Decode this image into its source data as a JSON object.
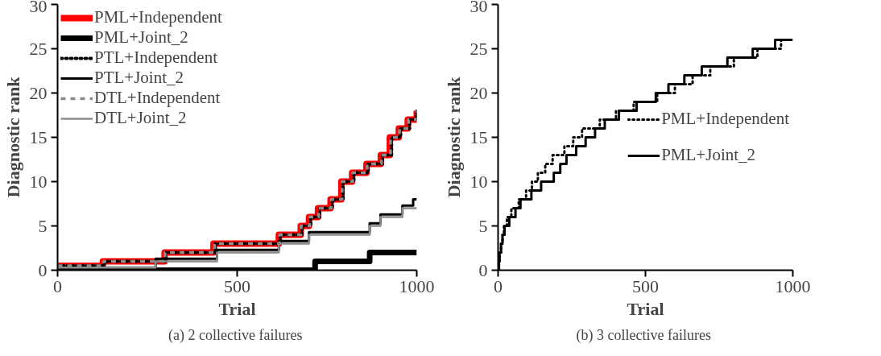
{
  "chart_data": [
    {
      "type": "step",
      "xlabel": "Trial",
      "ylabel": "Diagnostic rank",
      "xlim": [
        0,
        1000
      ],
      "xticks": [
        0,
        500,
        1000
      ],
      "ylim": [
        0,
        30
      ],
      "yticks": [
        0,
        5,
        10,
        15,
        20,
        25,
        30
      ],
      "grid": false,
      "legend": "top left",
      "annotations": [
        "(a)  2 collective failures"
      ],
      "series": [
        {
          "name": "PML+Independent",
          "color": "#ff0000",
          "line_style": "solid",
          "x": [
            0,
            126,
            298,
            434,
            616,
            677,
            700,
            725,
            760,
            790,
            820,
            860,
            900,
            925,
            950,
            975,
            1000
          ],
          "values": [
            0.5,
            1,
            2,
            3,
            4,
            5,
            6,
            7,
            8,
            10,
            11,
            12,
            13,
            15,
            16,
            17,
            18
          ]
        },
        {
          "name": "PML+Joint_2",
          "color": "#000000",
          "line_style": "solid",
          "x": [
            0,
            717,
            869,
            1000
          ],
          "values": [
            0,
            1,
            2,
            2
          ]
        },
        {
          "name": "PTL+Independent",
          "color": "#000000",
          "line_style": "dotted",
          "x": [
            0,
            130,
            300,
            440,
            620,
            680,
            705,
            730,
            765,
            795,
            825,
            865,
            905,
            930,
            955,
            980,
            1000
          ],
          "values": [
            0.5,
            1,
            2,
            3,
            4,
            5,
            6,
            7,
            8,
            10,
            11,
            12,
            13,
            15,
            16,
            17,
            18
          ]
        },
        {
          "name": "PTL+Joint_2",
          "color": "#000000",
          "line_style": "solid",
          "x": [
            0,
            273,
            444,
            616,
            700,
            869,
            899,
            960,
            990,
            1000
          ],
          "values": [
            0.3,
            1.3,
            2.3,
            3.3,
            4.3,
            5.3,
            6.3,
            7.3,
            8,
            8
          ]
        },
        {
          "name": "DTL+Independent",
          "color": "#8c8c8c",
          "line_style": "dashed",
          "x": [
            0,
            128,
            299,
            437,
            618,
            678,
            702,
            727,
            762,
            792,
            822,
            862,
            902,
            927,
            952,
            977,
            1000
          ],
          "values": [
            0.5,
            1,
            2,
            3,
            4,
            5,
            6,
            7,
            8,
            10,
            11,
            12,
            13,
            15,
            16,
            17,
            18
          ]
        },
        {
          "name": "DTL+Joint_2",
          "color": "#8c8c8c",
          "line_style": "solid",
          "x": [
            0,
            273,
            444,
            616,
            700,
            869,
            899,
            960,
            1000
          ],
          "values": [
            0.3,
            1,
            2,
            3,
            4,
            5,
            6,
            7,
            7
          ]
        }
      ]
    },
    {
      "type": "step",
      "xlabel": "Trial",
      "ylabel": "Diagnostic rank",
      "xlim": [
        0,
        1000
      ],
      "xticks": [
        0,
        500,
        1000
      ],
      "ylim": [
        0,
        30
      ],
      "yticks": [
        0,
        5,
        10,
        15,
        20,
        25,
        30
      ],
      "grid": false,
      "legend": "right",
      "annotations": [
        "(b)  3 collective failures"
      ],
      "series": [
        {
          "name": "PML+Independent",
          "color": "#000000",
          "line_style": "dotted",
          "x": [
            0,
            3,
            5,
            10,
            15,
            20,
            30,
            45,
            70,
            95,
            115,
            135,
            160,
            185,
            225,
            255,
            285,
            345,
            400,
            460,
            540,
            600,
            660,
            720,
            800,
            880,
            960,
            1000
          ],
          "values": [
            0,
            1,
            2,
            3,
            4,
            5,
            6,
            7,
            8,
            9,
            10,
            11,
            12,
            13,
            14,
            15,
            16,
            17,
            18,
            19,
            20,
            21,
            22,
            23,
            24,
            25,
            26,
            26
          ]
        },
        {
          "name": "PML+Joint_2",
          "color": "#000000",
          "line_style": "solid",
          "x": [
            0,
            3,
            5,
            10,
            15,
            22,
            27,
            38,
            59,
            76,
            113,
            146,
            189,
            211,
            232,
            265,
            297,
            329,
            362,
            410,
            470,
            535,
            578,
            632,
            691,
            778,
            864,
            940,
            1000
          ],
          "values": [
            0,
            1,
            2,
            3,
            4,
            5,
            5,
            6,
            7,
            8,
            9,
            10,
            11,
            12,
            13,
            14,
            15,
            16,
            17,
            18,
            19,
            20,
            21,
            22,
            23,
            24,
            25,
            26,
            26
          ]
        }
      ]
    }
  ]
}
